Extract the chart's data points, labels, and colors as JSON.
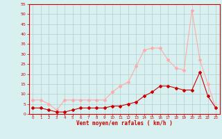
{
  "hours": [
    0,
    1,
    2,
    3,
    4,
    5,
    6,
    7,
    8,
    9,
    10,
    11,
    12,
    13,
    14,
    15,
    16,
    17,
    18,
    19,
    20,
    21,
    22,
    23
  ],
  "wind_avg": [
    3,
    3,
    2,
    1,
    1,
    2,
    3,
    3,
    3,
    3,
    4,
    4,
    5,
    6,
    9,
    11,
    14,
    14,
    13,
    12,
    12,
    21,
    9,
    3
  ],
  "wind_gust": [
    7,
    7,
    5,
    2,
    7,
    7,
    7,
    7,
    7,
    7,
    11,
    14,
    16,
    24,
    32,
    33,
    33,
    27,
    23,
    22,
    52,
    27,
    15,
    3
  ],
  "xlabel": "Vent moyen/en rafales ( km/h )",
  "ylim": [
    0,
    55
  ],
  "yticks": [
    0,
    5,
    10,
    15,
    20,
    25,
    30,
    35,
    40,
    45,
    50,
    55
  ],
  "xlim": [
    -0.5,
    23.5
  ],
  "avg_color": "#cc0000",
  "gust_color": "#ffaaaa",
  "bg_color": "#d8f0f0",
  "grid_color": "#b0cece",
  "axis_color": "#cc0000",
  "xlabel_color": "#cc0000",
  "tick_color": "#cc0000"
}
